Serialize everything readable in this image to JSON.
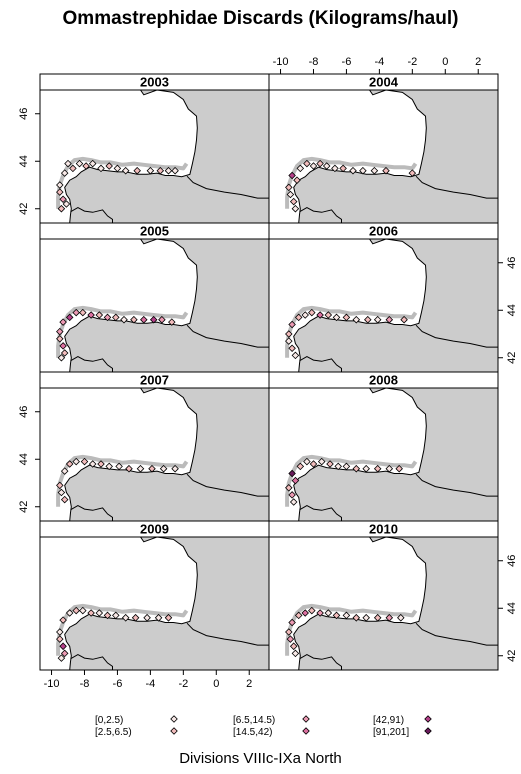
{
  "title": "Ommastrephidae Discards (Kilograms/haul)",
  "xlabel": "Divisions VIIIc-IXa North",
  "x_ticks": [
    "-10",
    "-8",
    "-6",
    "-4",
    "-2",
    "0",
    "2"
  ],
  "y_ticks": [
    "42",
    "44",
    "46"
  ],
  "panels": [
    {
      "label": "2003",
      "points": [
        [
          -9.2,
          43.5,
          0
        ],
        [
          -9.0,
          43.9,
          0
        ],
        [
          -8.7,
          43.7,
          1
        ],
        [
          -8.3,
          43.9,
          0
        ],
        [
          -7.9,
          43.8,
          1
        ],
        [
          -7.5,
          43.9,
          0
        ],
        [
          -7.0,
          43.7,
          0
        ],
        [
          -6.5,
          43.8,
          1
        ],
        [
          -6.0,
          43.7,
          0
        ],
        [
          -5.5,
          43.6,
          0
        ],
        [
          -4.8,
          43.6,
          1
        ],
        [
          -4.0,
          43.6,
          0
        ],
        [
          -3.4,
          43.6,
          1
        ],
        [
          -2.9,
          43.6,
          0
        ],
        [
          -2.5,
          43.6,
          0
        ],
        [
          -9.5,
          43.0,
          0
        ],
        [
          -9.5,
          42.7,
          1
        ],
        [
          -9.3,
          42.4,
          2
        ],
        [
          -9.1,
          42.2,
          0
        ],
        [
          -9.4,
          42.0,
          1
        ]
      ]
    },
    {
      "label": "2004",
      "points": [
        [
          -9.3,
          43.4,
          4
        ],
        [
          -9.0,
          43.2,
          1
        ],
        [
          -8.8,
          43.7,
          0
        ],
        [
          -8.4,
          43.9,
          1
        ],
        [
          -8.0,
          43.8,
          0
        ],
        [
          -7.6,
          43.9,
          1
        ],
        [
          -7.2,
          43.8,
          0
        ],
        [
          -6.7,
          43.7,
          0
        ],
        [
          -6.2,
          43.7,
          1
        ],
        [
          -5.6,
          43.6,
          0
        ],
        [
          -5.0,
          43.6,
          0
        ],
        [
          -4.3,
          43.6,
          0
        ],
        [
          -3.6,
          43.6,
          1
        ],
        [
          -2.0,
          43.5,
          1
        ],
        [
          -9.5,
          42.9,
          1
        ],
        [
          -9.4,
          42.6,
          0
        ],
        [
          -9.2,
          42.3,
          1
        ],
        [
          -9.1,
          42.0,
          0
        ]
      ]
    },
    {
      "label": "2005",
      "points": [
        [
          -9.3,
          43.5,
          2
        ],
        [
          -8.9,
          43.7,
          4
        ],
        [
          -8.5,
          43.9,
          2
        ],
        [
          -8.1,
          43.9,
          1
        ],
        [
          -7.6,
          43.8,
          3
        ],
        [
          -7.1,
          43.8,
          1
        ],
        [
          -6.6,
          43.7,
          2
        ],
        [
          -6.1,
          43.7,
          1
        ],
        [
          -5.6,
          43.6,
          0
        ],
        [
          -5.0,
          43.6,
          1
        ],
        [
          -4.4,
          43.6,
          3
        ],
        [
          -3.8,
          43.6,
          4
        ],
        [
          -3.3,
          43.6,
          2
        ],
        [
          -2.7,
          43.5,
          1
        ],
        [
          -9.5,
          43.1,
          2
        ],
        [
          -9.5,
          42.8,
          1
        ],
        [
          -9.3,
          42.5,
          3
        ],
        [
          -9.2,
          42.2,
          1
        ],
        [
          -9.4,
          42.0,
          0
        ]
      ]
    },
    {
      "label": "2006",
      "points": [
        [
          -9.3,
          43.4,
          2
        ],
        [
          -8.9,
          43.7,
          1
        ],
        [
          -8.5,
          43.8,
          0
        ],
        [
          -8.1,
          43.9,
          1
        ],
        [
          -7.6,
          43.8,
          3
        ],
        [
          -7.1,
          43.8,
          1
        ],
        [
          -6.6,
          43.7,
          0
        ],
        [
          -6.0,
          43.7,
          1
        ],
        [
          -5.4,
          43.6,
          0
        ],
        [
          -4.7,
          43.6,
          1
        ],
        [
          -4.1,
          43.6,
          0
        ],
        [
          -3.4,
          43.6,
          2
        ],
        [
          -2.5,
          43.6,
          1
        ],
        [
          -9.5,
          43.0,
          1
        ],
        [
          -9.5,
          42.7,
          0
        ],
        [
          -9.3,
          42.4,
          1
        ],
        [
          -9.1,
          42.1,
          0
        ]
      ]
    },
    {
      "label": "2007",
      "points": [
        [
          -9.2,
          43.5,
          0
        ],
        [
          -8.9,
          43.8,
          1
        ],
        [
          -8.5,
          43.9,
          0
        ],
        [
          -8.0,
          43.9,
          1
        ],
        [
          -7.5,
          43.8,
          0
        ],
        [
          -7.0,
          43.8,
          1
        ],
        [
          -6.5,
          43.7,
          0
        ],
        [
          -5.9,
          43.7,
          0
        ],
        [
          -5.3,
          43.6,
          1
        ],
        [
          -4.6,
          43.6,
          0
        ],
        [
          -3.9,
          43.6,
          1
        ],
        [
          -3.2,
          43.6,
          0
        ],
        [
          -2.5,
          43.6,
          0
        ],
        [
          -9.5,
          42.9,
          1
        ],
        [
          -9.4,
          42.6,
          0
        ],
        [
          -9.2,
          42.3,
          1
        ]
      ]
    },
    {
      "label": "2008",
      "points": [
        [
          -9.3,
          43.4,
          5
        ],
        [
          -9.1,
          43.1,
          3
        ],
        [
          -8.8,
          43.7,
          1
        ],
        [
          -8.4,
          43.9,
          0
        ],
        [
          -8.0,
          43.8,
          1
        ],
        [
          -7.5,
          43.9,
          0
        ],
        [
          -7.0,
          43.8,
          1
        ],
        [
          -6.5,
          43.7,
          0
        ],
        [
          -6.0,
          43.7,
          0
        ],
        [
          -5.4,
          43.6,
          1
        ],
        [
          -4.8,
          43.6,
          0
        ],
        [
          -4.1,
          43.6,
          1
        ],
        [
          -3.4,
          43.6,
          0
        ],
        [
          -2.8,
          43.6,
          1
        ],
        [
          -9.5,
          42.8,
          1
        ],
        [
          -9.3,
          42.5,
          2
        ],
        [
          -9.2,
          42.2,
          0
        ]
      ]
    },
    {
      "label": "2009",
      "points": [
        [
          -9.3,
          43.5,
          1
        ],
        [
          -8.9,
          43.8,
          0
        ],
        [
          -8.5,
          43.9,
          1
        ],
        [
          -8.1,
          43.9,
          0
        ],
        [
          -7.6,
          43.8,
          1
        ],
        [
          -7.1,
          43.8,
          0
        ],
        [
          -6.6,
          43.7,
          1
        ],
        [
          -6.1,
          43.7,
          0
        ],
        [
          -5.5,
          43.6,
          0
        ],
        [
          -4.9,
          43.6,
          1
        ],
        [
          -4.2,
          43.6,
          0
        ],
        [
          -3.5,
          43.6,
          0
        ],
        [
          -2.9,
          43.6,
          1
        ],
        [
          -9.5,
          43.0,
          0
        ],
        [
          -9.5,
          42.7,
          1
        ],
        [
          -9.3,
          42.4,
          4
        ],
        [
          -9.2,
          42.1,
          2
        ],
        [
          -9.4,
          41.9,
          0
        ]
      ]
    },
    {
      "label": "2010",
      "points": [
        [
          -9.3,
          43.4,
          2
        ],
        [
          -8.9,
          43.7,
          1
        ],
        [
          -8.5,
          43.8,
          3
        ],
        [
          -8.1,
          43.9,
          1
        ],
        [
          -7.6,
          43.8,
          2
        ],
        [
          -7.1,
          43.8,
          0
        ],
        [
          -6.6,
          43.7,
          1
        ],
        [
          -6.0,
          43.7,
          0
        ],
        [
          -5.4,
          43.6,
          1
        ],
        [
          -4.8,
          43.6,
          0
        ],
        [
          -4.1,
          43.6,
          1
        ],
        [
          -3.4,
          43.6,
          2
        ],
        [
          -2.7,
          43.6,
          0
        ],
        [
          -9.5,
          43.0,
          1
        ],
        [
          -9.4,
          42.7,
          2
        ],
        [
          -9.2,
          42.4,
          1
        ],
        [
          -9.1,
          42.1,
          0
        ]
      ]
    }
  ],
  "legend": [
    {
      "label": "[0,2.5)",
      "color": "#f7e8e6"
    },
    {
      "label": "[2.5,6.5)",
      "color": "#f2bcbc"
    },
    {
      "label": "[6.5,14.5)",
      "color": "#ec9ab3"
    },
    {
      "label": "[14.5,42)",
      "color": "#dc70a0"
    },
    {
      "label": "[42,91)",
      "color": "#b5408a"
    },
    {
      "label": "[91,201]",
      "color": "#6a1b5c"
    }
  ],
  "colors": {
    "land": "#cccccc",
    "sea": "#ffffff",
    "strip": "#ffffff",
    "depth_contour": "#bbbbbb"
  }
}
